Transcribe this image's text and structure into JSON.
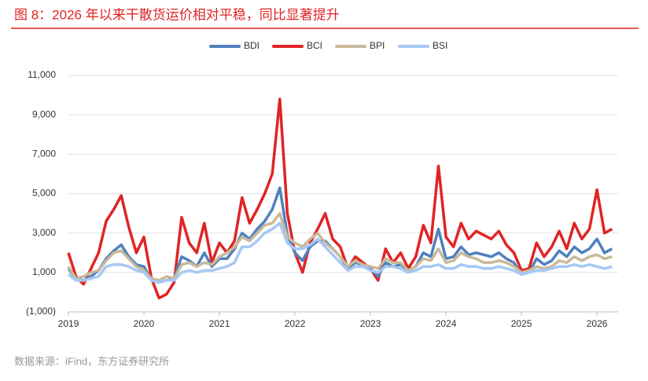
{
  "chart_data": {
    "type": "line",
    "title": "图 8：2026 年以来干散货运价相对平稳，同比显著提升",
    "source": "数据来源：iFind，东方证券研究所",
    "x": [
      2019.0,
      2019.1,
      2019.2,
      2019.3,
      2019.4,
      2019.5,
      2019.6,
      2019.7,
      2019.8,
      2019.9,
      2020.0,
      2020.1,
      2020.2,
      2020.3,
      2020.4,
      2020.5,
      2020.6,
      2020.7,
      2020.8,
      2020.9,
      2021.0,
      2021.1,
      2021.2,
      2021.3,
      2021.4,
      2021.5,
      2021.6,
      2021.7,
      2021.8,
      2021.9,
      2022.0,
      2022.1,
      2022.2,
      2022.3,
      2022.4,
      2022.5,
      2022.6,
      2022.7,
      2022.8,
      2022.9,
      2023.0,
      2023.1,
      2023.2,
      2023.3,
      2023.4,
      2023.5,
      2023.6,
      2023.7,
      2023.8,
      2023.9,
      2024.0,
      2024.1,
      2024.2,
      2024.3,
      2024.4,
      2024.5,
      2024.6,
      2024.7,
      2024.8,
      2024.9,
      2025.0,
      2025.1,
      2025.2,
      2025.3,
      2025.4,
      2025.5,
      2025.6,
      2025.7,
      2025.8,
      2025.9,
      2026.0,
      2026.1,
      2026.2
    ],
    "series": [
      {
        "name": "BDI",
        "color": "#4f81bd",
        "values": [
          1200,
          700,
          600,
          800,
          1100,
          1700,
          2100,
          2400,
          1800,
          1400,
          1300,
          600,
          500,
          600,
          700,
          1800,
          1600,
          1300,
          2000,
          1300,
          1700,
          1700,
          2200,
          3000,
          2700,
          3200,
          3600,
          4200,
          5300,
          2900,
          2000,
          1600,
          2300,
          2600,
          2600,
          2200,
          1800,
          1200,
          1500,
          1400,
          1200,
          800,
          1500,
          1300,
          1400,
          1100,
          1300,
          2000,
          1800,
          3200,
          1700,
          1800,
          2300,
          1900,
          2000,
          1900,
          1800,
          2000,
          1700,
          1500,
          900,
          1000,
          1700,
          1400,
          1600,
          2100,
          1800,
          2300,
          2000,
          2200,
          2700,
          2000,
          2200
        ]
      },
      {
        "name": "BCI",
        "color": "#e02424",
        "values": [
          2000,
          800,
          400,
          1200,
          2000,
          3600,
          4200,
          4900,
          3300,
          2000,
          2800,
          700,
          -300,
          -100,
          500,
          3800,
          2500,
          2000,
          3500,
          1500,
          2500,
          2000,
          2600,
          4800,
          3500,
          4200,
          5000,
          6000,
          9800,
          4000,
          2000,
          1000,
          2500,
          3200,
          4000,
          2700,
          2300,
          1200,
          1800,
          1500,
          1200,
          600,
          2200,
          1500,
          2000,
          1200,
          1800,
          3400,
          2500,
          6400,
          2800,
          2300,
          3500,
          2700,
          3100,
          2900,
          2700,
          3100,
          2400,
          2000,
          1100,
          1200,
          2500,
          1800,
          2300,
          3100,
          2200,
          3500,
          2700,
          3200,
          5200,
          3000,
          3200
        ]
      },
      {
        "name": "BPI",
        "color": "#c9b99a",
        "values": [
          1300,
          700,
          800,
          1000,
          1100,
          1600,
          2000,
          2100,
          1700,
          1300,
          1100,
          700,
          600,
          800,
          700,
          1400,
          1500,
          1300,
          1500,
          1400,
          1800,
          2000,
          2300,
          2800,
          2600,
          3000,
          3400,
          3500,
          4000,
          2800,
          2500,
          2300,
          2700,
          3000,
          2500,
          2200,
          1800,
          1300,
          1600,
          1400,
          1300,
          1200,
          1700,
          1500,
          1500,
          1100,
          1300,
          1700,
          1600,
          2200,
          1500,
          1600,
          2000,
          1800,
          1700,
          1500,
          1500,
          1600,
          1500,
          1300,
          1000,
          1100,
          1300,
          1200,
          1300,
          1600,
          1500,
          1800,
          1600,
          1800,
          1900,
          1700,
          1800
        ]
      },
      {
        "name": "BSI",
        "color": "#a6c8f5",
        "values": [
          900,
          600,
          600,
          700,
          800,
          1300,
          1400,
          1400,
          1300,
          1100,
          1000,
          600,
          500,
          600,
          600,
          1000,
          1100,
          1000,
          1100,
          1100,
          1200,
          1300,
          1500,
          2300,
          2300,
          2600,
          3000,
          3200,
          3500,
          2500,
          2200,
          2200,
          2400,
          2700,
          2300,
          1900,
          1500,
          1100,
          1300,
          1300,
          1100,
          1000,
          1300,
          1300,
          1200,
          1000,
          1100,
          1300,
          1300,
          1400,
          1200,
          1200,
          1400,
          1300,
          1300,
          1200,
          1200,
          1300,
          1200,
          1100,
          900,
          1000,
          1100,
          1100,
          1200,
          1300,
          1300,
          1400,
          1300,
          1400,
          1300,
          1200,
          1300
        ]
      }
    ],
    "xlim": [
      2019,
      2026.28
    ],
    "xticks": [
      2019,
      2020,
      2021,
      2022,
      2023,
      2024,
      2025,
      2026
    ],
    "ylim": [
      -1000,
      11000
    ],
    "yticks": [
      {
        "value": -1000,
        "label": "(1,000)"
      },
      {
        "value": 1000,
        "label": "1,000"
      },
      {
        "value": 3000,
        "label": "3,000"
      },
      {
        "value": 5000,
        "label": "5,000"
      },
      {
        "value": 7000,
        "label": "7,000"
      },
      {
        "value": 9000,
        "label": "9,000"
      },
      {
        "value": 11000,
        "label": "11,000"
      }
    ],
    "grid": true,
    "legend": "top"
  }
}
